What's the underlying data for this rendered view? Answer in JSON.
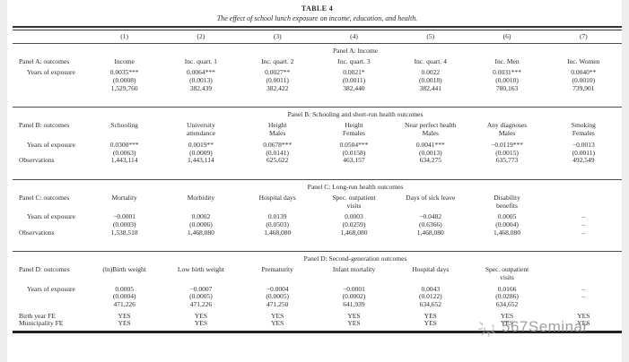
{
  "table": {
    "title": "TABLE 4",
    "subtitle": "The effect of school lunch exposure on income, education, and health.",
    "column_numbers": [
      "(1)",
      "(2)",
      "(3)",
      "(4)",
      "(5)",
      "(6)",
      "(7)"
    ],
    "panels": [
      {
        "section_title": "Panel A: Income",
        "outcomes_label": "Panel A: outcomes",
        "outcomes": [
          "Income",
          "Inc. quart. 1",
          "Inc. quart. 2",
          "Inc. quart. 3",
          "Inc. quart. 4",
          "Inc. Men",
          "Inc. Women"
        ],
        "rows": [
          {
            "label": "Years of exposure",
            "values": [
              "0.0035***",
              "0.0064***",
              "0.0027**",
              "0.0021*",
              "0.0022",
              "0.0031***",
              "0.0040**"
            ]
          },
          {
            "label": "",
            "values": [
              "(0.0008)",
              "(0.0013)",
              "(0.0011)",
              "(0.0011)",
              "(0.0018)",
              "(0.0010)",
              "(0.0010)"
            ]
          },
          {
            "label": "",
            "values": [
              "1,529,760",
              "382,439",
              "382,422",
              "382,440",
              "382,441",
              "780,163",
              "739,901"
            ]
          }
        ]
      },
      {
        "section_title": "Panel B: Schooling and short-run health outcomes",
        "outcomes_label": "Panel B: outcomes",
        "outcomes": [
          "Schooling",
          "University\nattendance",
          "Height\nMales",
          "Height\nFemales",
          "Near perfect health\nMales",
          "Any diagnoses\nMales",
          "Smoking\nFemales"
        ],
        "rows": [
          {
            "label": "Years of exposure",
            "values": [
              "0.0300***",
              "0.0019**",
              "0.0678***",
              "0.0504***",
              "0.0041***",
              "−0.0119***",
              "−0.0013"
            ]
          },
          {
            "label": "",
            "values": [
              "(0.0063)",
              "(0.0009)",
              "(0.0141)",
              "(0.0158)",
              "(0.0013)",
              "(0.0015)",
              "(0.0011)"
            ]
          },
          {
            "label": "Observations",
            "values": [
              "1,443,114",
              "1,443,114",
              "625,622",
              "463,157",
              "634,275",
              "635,773",
              "492,549"
            ]
          }
        ]
      },
      {
        "section_title": "Panel C: Long-run health outcomes",
        "outcomes_label": "Panel C: outcomes",
        "outcomes": [
          "Mortality",
          "Morbidity",
          "Hospital days",
          "Spec. outpatient\nvisits",
          "Days of sick leave",
          "Disability\nbenefits",
          ""
        ],
        "rows": [
          {
            "label": "Years of exposure",
            "values": [
              "−0.0001",
              "0.0002",
              "0.0139",
              "0.0003",
              "−0.0482",
              "0.0005",
              "–"
            ]
          },
          {
            "label": "",
            "values": [
              "(0.0003)",
              "(0.0006)",
              "(0.0503)",
              "(0.0259)",
              "(0.6366)",
              "(0.0004)",
              "–"
            ]
          },
          {
            "label": "Observations",
            "values": [
              "1,538,518",
              "1,468,080",
              "1,468,080",
              "1,468,080",
              "1,468,080",
              "1,468,080",
              "–"
            ]
          }
        ]
      },
      {
        "section_title": "Panel D: Second-generation outcomes",
        "outcomes_label": "Panel D: outcomes",
        "outcomes": [
          "(ln)Birth weight",
          "Low birth weight",
          "Prematurity",
          "Infant mortality",
          "Hospital days",
          "Spec. outpatient\nvisits",
          ""
        ],
        "rows": [
          {
            "label": "Years of exposure",
            "values": [
              "0.0005",
              "−0.0007",
              "−0.0004",
              "−0.0001",
              "0.0043",
              "0.0166",
              "–"
            ]
          },
          {
            "label": "",
            "values": [
              "(0.0004)",
              "(0.0005)",
              "(0.0005)",
              "(0.0002)",
              "(0.0122)",
              "(0.0286)",
              "–"
            ]
          },
          {
            "label": "",
            "values": [
              "471,226",
              "471,226",
              "471,250",
              "641,939",
              "634,652",
              "634,652",
              ""
            ]
          }
        ]
      }
    ],
    "footer_rows": [
      {
        "label": "Birth year FE",
        "values": [
          "YES",
          "YES",
          "YES",
          "YES",
          "YES",
          "YES",
          "YES"
        ]
      },
      {
        "label": "Municipality FE",
        "values": [
          "YES",
          "YES",
          "YES",
          "YES",
          "YES",
          "YES",
          "YES"
        ]
      }
    ]
  },
  "watermark": {
    "text": "567Seminar",
    "icon": "sun-sketch-icon",
    "color": "#8f8f8f"
  }
}
